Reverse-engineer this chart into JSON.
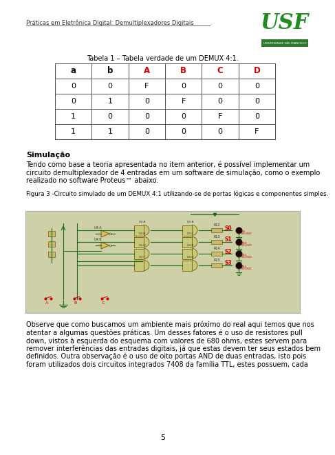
{
  "header_title": "Práticas em Eletrônica Digital: Demultiplexadores Digitais",
  "table_caption": "Tabela 1 – Tabela verdade de um DEMUX 4:1.",
  "table_headers": [
    "a",
    "b",
    "A",
    "B",
    "C",
    "D"
  ],
  "table_header_colors": [
    "#000000",
    "#000000",
    "#cc0000",
    "#cc0000",
    "#cc0000",
    "#cc0000"
  ],
  "table_data": [
    [
      "0",
      "0",
      "F",
      "0",
      "0",
      "0"
    ],
    [
      "0",
      "1",
      "0",
      "F",
      "0",
      "0"
    ],
    [
      "1",
      "0",
      "0",
      "0",
      "F",
      "0"
    ],
    [
      "1",
      "1",
      "0",
      "0",
      "0",
      "F"
    ]
  ],
  "section_title": "Simulação",
  "fig_caption": "Figura 3 -Circuito simulado de um DEMUX 4:1 utilizando-se de portas lógicas e componentes simples.",
  "paragraph1": "Tendo como base a teoria apresentada no item anterior, é possível implementar um circuito demultiplexador de 4 entradas em um software de simulação, como o exemplo realizado no software Proteus™ abaixo.",
  "paragraph2": "Observe que como buscamos um ambiente mais próximo do real aqui temos que nos atentar a algumas questões práticas. Um desses fatores é o uso de resistores pull down, vistos à esquerda do esquema com valores de 680 ohms, estes servem para remover interferências das entradas digitais, já que estas devem ter seus estados bem definidos. Outra observação é o uso de oito portas AND de duas entradas, isto pois foram utilizados dois circuitos integrados 7408 da família TTL, estes possuem, cada",
  "page_number": "5",
  "bg_color": "#ffffff",
  "circuit_bg": "#ced0a8",
  "circuit_border": "#aaaaaa",
  "green": "#1a6b1a",
  "dark_red": "#8b0000",
  "gate_fill": "#d4c87a",
  "gate_edge": "#8b6914"
}
